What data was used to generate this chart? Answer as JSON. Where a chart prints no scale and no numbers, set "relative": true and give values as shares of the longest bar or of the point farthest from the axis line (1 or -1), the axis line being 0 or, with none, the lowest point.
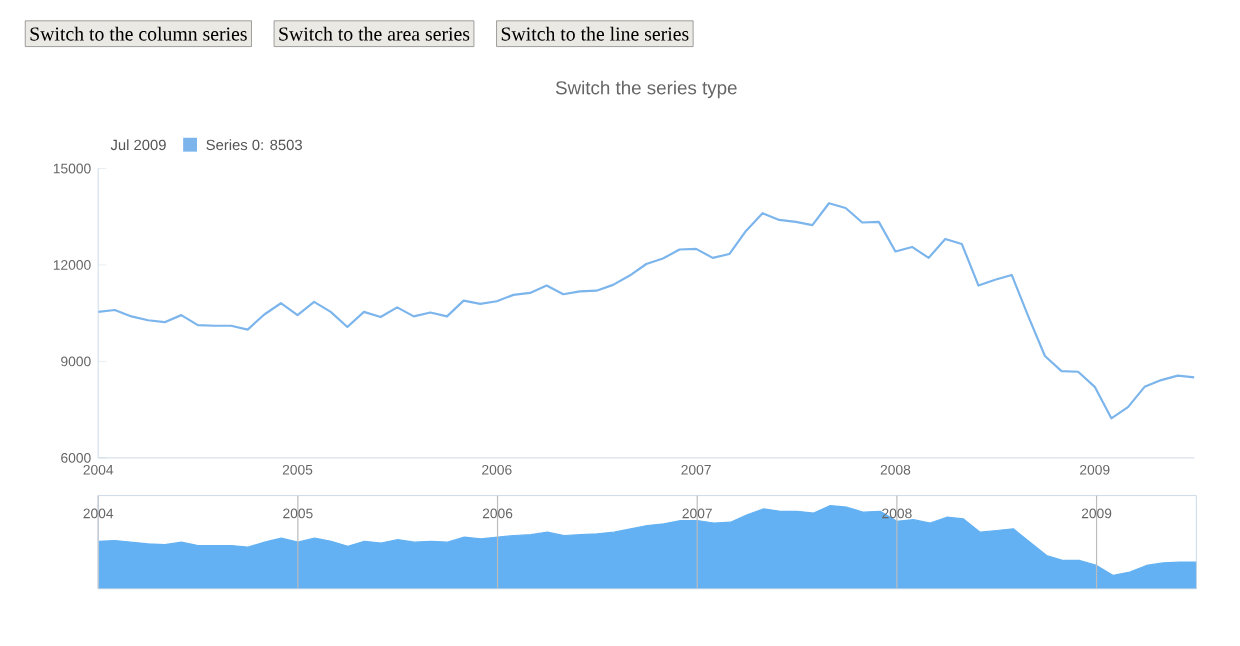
{
  "chart_data": [
    {
      "type": "line",
      "title": "Switch the series type",
      "annotations": [
        "Switch to the column series",
        "Switch to the area series",
        "Switch to the line series"
      ],
      "legend": "top left",
      "legend_title": "Jul 2009",
      "x": [
        "2004-01",
        "2004-02",
        "2004-03",
        "2004-04",
        "2004-05",
        "2004-06",
        "2004-07",
        "2004-08",
        "2004-09",
        "2004-10",
        "2004-11",
        "2004-12",
        "2005-01",
        "2005-02",
        "2005-03",
        "2005-04",
        "2005-05",
        "2005-06",
        "2005-07",
        "2005-08",
        "2005-09",
        "2005-10",
        "2005-11",
        "2005-12",
        "2006-01",
        "2006-02",
        "2006-03",
        "2006-04",
        "2006-05",
        "2006-06",
        "2006-07",
        "2006-08",
        "2006-09",
        "2006-10",
        "2006-11",
        "2006-12",
        "2007-01",
        "2007-02",
        "2007-03",
        "2007-04",
        "2007-05",
        "2007-06",
        "2007-07",
        "2007-08",
        "2007-09",
        "2007-10",
        "2007-11",
        "2007-12",
        "2008-01",
        "2008-02",
        "2008-03",
        "2008-04",
        "2008-05",
        "2008-06",
        "2008-07",
        "2008-08",
        "2008-09",
        "2008-10",
        "2008-11",
        "2008-12",
        "2009-01",
        "2009-02",
        "2009-03",
        "2009-04",
        "2009-05",
        "2009-06",
        "2009-07"
      ],
      "series": [
        {
          "name": "Series 0: 8503",
          "color": "#7cb5ec",
          "values": [
            10540,
            10600,
            10400,
            10280,
            10220,
            10440,
            10130,
            10110,
            10110,
            9990,
            10460,
            10810,
            10440,
            10850,
            10540,
            10070,
            10540,
            10380,
            10680,
            10400,
            10520,
            10400,
            10890,
            10790,
            10870,
            11070,
            11130,
            11360,
            11090,
            11180,
            11200,
            11380,
            11670,
            12030,
            12200,
            12480,
            12500,
            12220,
            12340,
            13060,
            13610,
            13400,
            13340,
            13240,
            13920,
            13770,
            13320,
            13340,
            12420,
            12560,
            12220,
            12810,
            12650,
            11360,
            11540,
            11690,
            10400,
            9170,
            8700,
            8680,
            8210,
            7230,
            7580,
            8210,
            8420,
            8560,
            8503
          ]
        }
      ],
      "xlim": [
        "2004-01",
        "2009-07"
      ],
      "xticks": [
        "2004",
        "2005",
        "2006",
        "2007",
        "2008",
        "2009"
      ],
      "ylim": [
        6000,
        15000
      ],
      "yticks": [
        6000,
        9000,
        12000,
        15000
      ]
    },
    {
      "type": "area",
      "x": [
        "2004-01",
        "2004-02",
        "2004-03",
        "2004-04",
        "2004-05",
        "2004-06",
        "2004-07",
        "2004-08",
        "2004-09",
        "2004-10",
        "2004-11",
        "2004-12",
        "2005-01",
        "2005-02",
        "2005-03",
        "2005-04",
        "2005-05",
        "2005-06",
        "2005-07",
        "2005-08",
        "2005-09",
        "2005-10",
        "2005-11",
        "2005-12",
        "2006-01",
        "2006-02",
        "2006-03",
        "2006-04",
        "2006-05",
        "2006-06",
        "2006-07",
        "2006-08",
        "2006-09",
        "2006-10",
        "2006-11",
        "2006-12",
        "2007-01",
        "2007-02",
        "2007-03",
        "2007-04",
        "2007-05",
        "2007-06",
        "2007-07",
        "2007-08",
        "2007-09",
        "2007-10",
        "2007-11",
        "2007-12",
        "2008-01",
        "2008-02",
        "2008-03",
        "2008-04",
        "2008-05",
        "2008-06",
        "2008-07",
        "2008-08",
        "2008-09",
        "2008-10",
        "2008-11",
        "2008-12",
        "2009-01",
        "2009-02",
        "2009-03",
        "2009-04",
        "2009-05",
        "2009-06",
        "2009-07"
      ],
      "series": [
        {
          "color": "#63b1f2",
          "values": [
            0.57,
            0.58,
            0.56,
            0.54,
            0.53,
            0.56,
            0.52,
            0.52,
            0.52,
            0.5,
            0.56,
            0.61,
            0.56,
            0.61,
            0.57,
            0.51,
            0.57,
            0.55,
            0.59,
            0.56,
            0.57,
            0.56,
            0.62,
            0.6,
            0.62,
            0.64,
            0.65,
            0.68,
            0.64,
            0.65,
            0.66,
            0.68,
            0.72,
            0.76,
            0.78,
            0.82,
            0.82,
            0.79,
            0.8,
            0.89,
            0.96,
            0.93,
            0.93,
            0.91,
            1,
            0.98,
            0.92,
            0.93,
            0.81,
            0.83,
            0.79,
            0.86,
            0.84,
            0.68,
            0.7,
            0.72,
            0.56,
            0.4,
            0.34,
            0.34,
            0.28,
            0.16,
            0.2,
            0.28,
            0.31,
            0.32,
            0.32
          ]
        }
      ],
      "xlim": [
        "2004-01",
        "2009-07"
      ],
      "xticks": [
        "2004",
        "2005",
        "2006",
        "2007",
        "2008",
        "2009"
      ],
      "relative": true,
      "tick_labels": "x",
      "grid": "x"
    }
  ]
}
